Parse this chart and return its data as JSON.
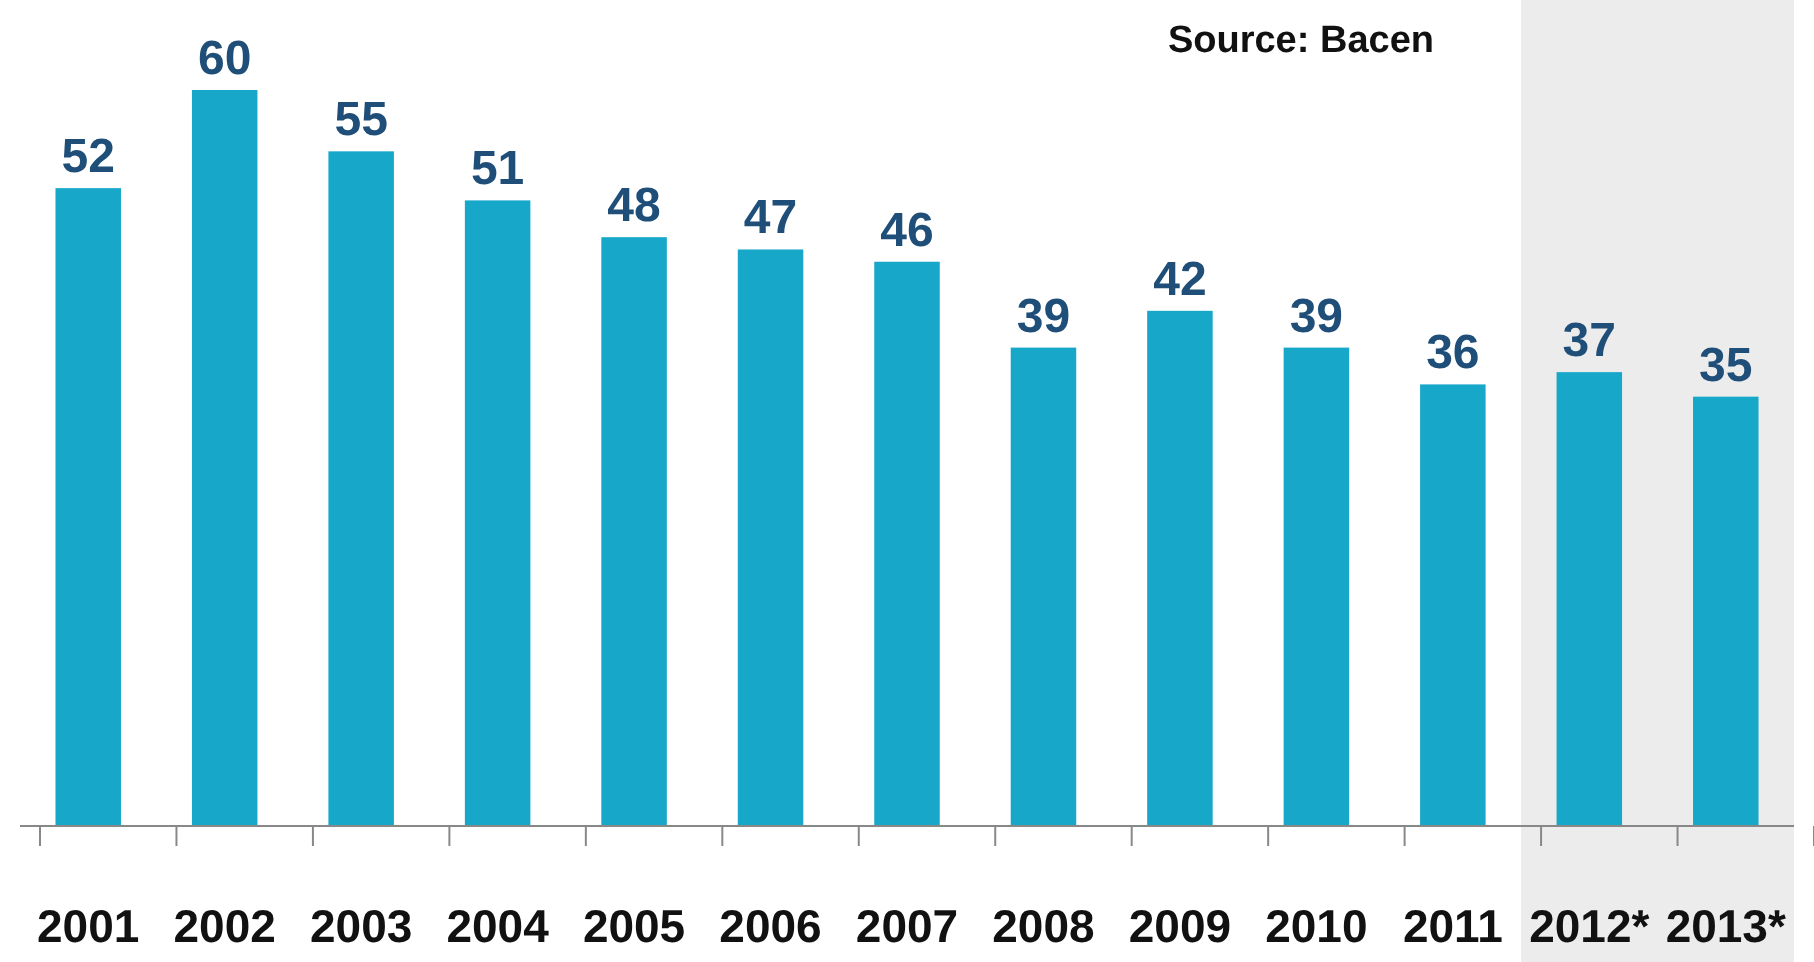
{
  "chart_data": {
    "type": "bar",
    "categories": [
      "2001",
      "2002",
      "2003",
      "2004",
      "2005",
      "2006",
      "2007",
      "2008",
      "2009",
      "2010",
      "2011",
      "2012*",
      "2013*"
    ],
    "values": [
      52,
      60,
      55,
      51,
      48,
      47,
      46,
      39,
      42,
      39,
      36,
      37,
      35
    ],
    "color": "#17a8c9",
    "data_labels": true,
    "bands": [
      {
        "axis": "x",
        "from": "2012*",
        "to": "2013*",
        "color": "#ececec"
      }
    ],
    "annotations": [
      "Source: Bacen"
    ]
  }
}
